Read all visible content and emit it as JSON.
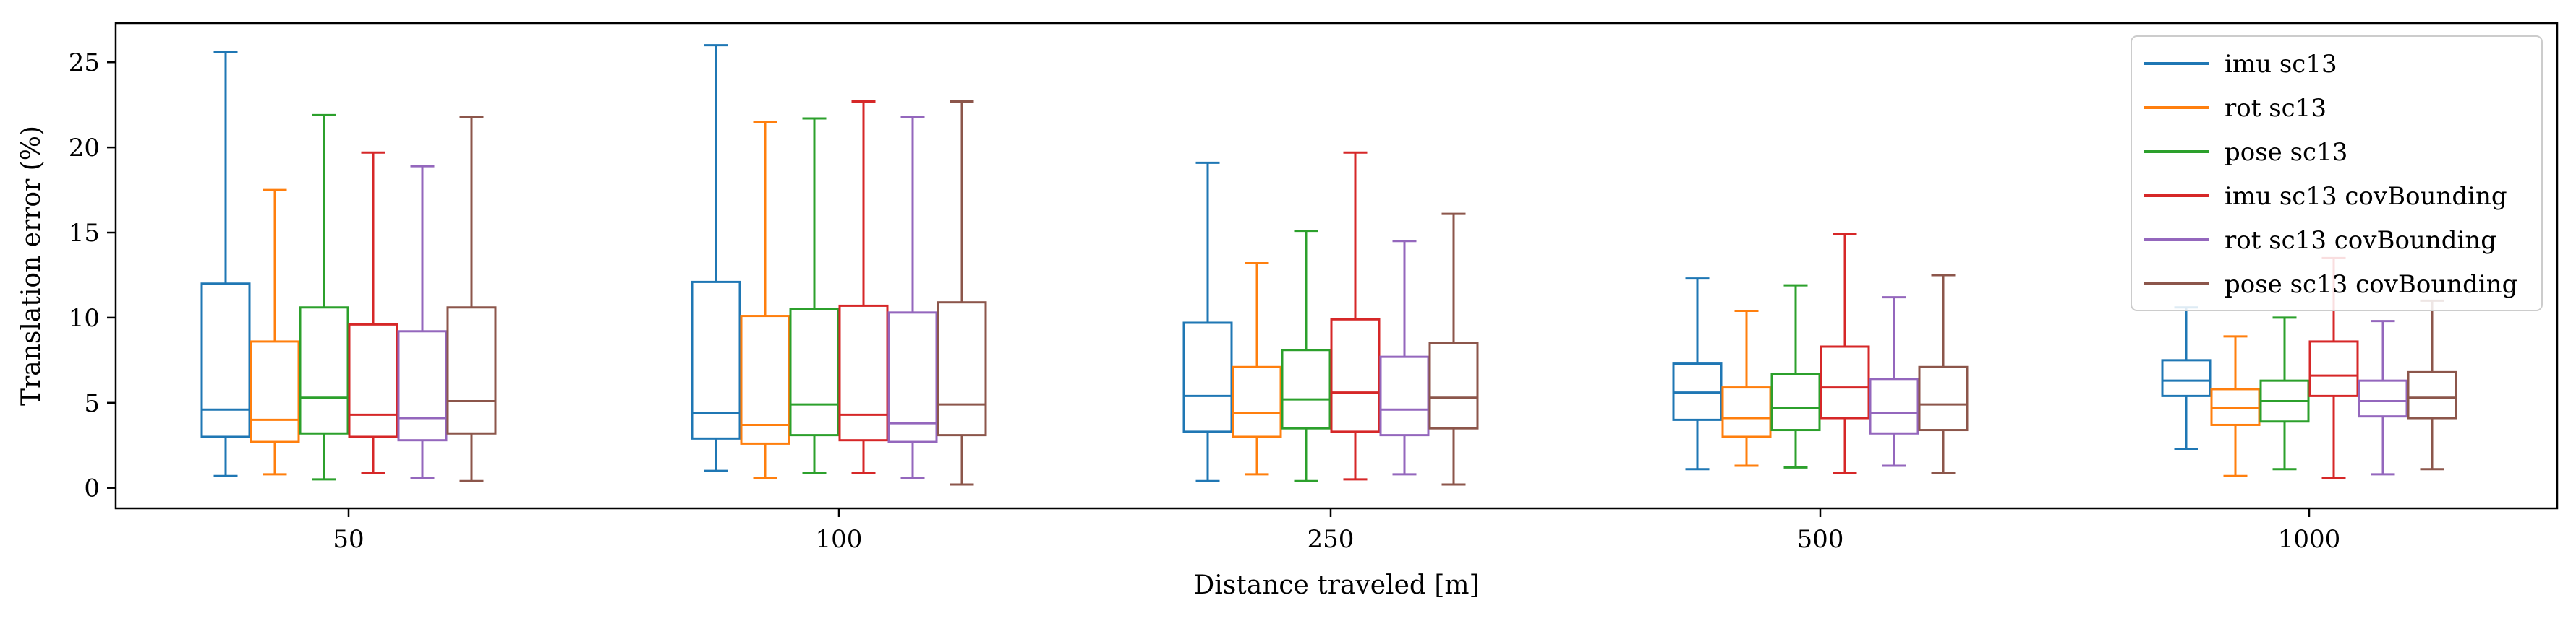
{
  "chart_data": {
    "type": "boxplot",
    "xlabel": "Distance traveled [m]",
    "ylabel": "Translation error (%)",
    "ylim": [
      -1.2,
      27.3
    ],
    "yticks": [
      0,
      5,
      10,
      15,
      20,
      25
    ],
    "grid": false,
    "legend_position": "top-right",
    "categories": [
      "50",
      "100",
      "250",
      "500",
      "1000"
    ],
    "series": [
      {
        "name": "imu sc13",
        "color": "#1f77b4",
        "boxes": [
          {
            "whislo": 0.7,
            "q1": 3.0,
            "med": 4.6,
            "q3": 12.0,
            "whishi": 25.6
          },
          {
            "whislo": 1.0,
            "q1": 2.9,
            "med": 4.4,
            "q3": 12.1,
            "whishi": 26.0
          },
          {
            "whislo": 0.4,
            "q1": 3.3,
            "med": 5.4,
            "q3": 9.7,
            "whishi": 19.1
          },
          {
            "whislo": 1.1,
            "q1": 4.0,
            "med": 5.6,
            "q3": 7.3,
            "whishi": 12.3
          },
          {
            "whislo": 2.3,
            "q1": 5.4,
            "med": 6.3,
            "q3": 7.5,
            "whishi": 10.6
          }
        ]
      },
      {
        "name": "rot sc13",
        "color": "#ff7f0e",
        "boxes": [
          {
            "whislo": 0.8,
            "q1": 2.7,
            "med": 4.0,
            "q3": 8.6,
            "whishi": 17.5
          },
          {
            "whislo": 0.6,
            "q1": 2.6,
            "med": 3.7,
            "q3": 10.1,
            "whishi": 21.5
          },
          {
            "whislo": 0.8,
            "q1": 3.0,
            "med": 4.4,
            "q3": 7.1,
            "whishi": 13.2
          },
          {
            "whislo": 1.3,
            "q1": 3.0,
            "med": 4.1,
            "q3": 5.9,
            "whishi": 10.4
          },
          {
            "whislo": 0.7,
            "q1": 3.7,
            "med": 4.7,
            "q3": 5.8,
            "whishi": 8.9
          }
        ]
      },
      {
        "name": "pose sc13",
        "color": "#2ca02c",
        "boxes": [
          {
            "whislo": 0.5,
            "q1": 3.2,
            "med": 5.3,
            "q3": 10.6,
            "whishi": 21.9
          },
          {
            "whislo": 0.9,
            "q1": 3.1,
            "med": 4.9,
            "q3": 10.5,
            "whishi": 21.7
          },
          {
            "whislo": 0.4,
            "q1": 3.5,
            "med": 5.2,
            "q3": 8.1,
            "whishi": 15.1
          },
          {
            "whislo": 1.2,
            "q1": 3.4,
            "med": 4.7,
            "q3": 6.7,
            "whishi": 11.9
          },
          {
            "whislo": 1.1,
            "q1": 3.9,
            "med": 5.1,
            "q3": 6.3,
            "whishi": 10.0
          }
        ]
      },
      {
        "name": "imu sc13 covBounding",
        "color": "#d62728",
        "boxes": [
          {
            "whislo": 0.9,
            "q1": 3.0,
            "med": 4.3,
            "q3": 9.6,
            "whishi": 19.7
          },
          {
            "whislo": 0.9,
            "q1": 2.8,
            "med": 4.3,
            "q3": 10.7,
            "whishi": 22.7
          },
          {
            "whislo": 0.5,
            "q1": 3.3,
            "med": 5.6,
            "q3": 9.9,
            "whishi": 19.7
          },
          {
            "whislo": 0.9,
            "q1": 4.1,
            "med": 5.9,
            "q3": 8.3,
            "whishi": 14.9
          },
          {
            "whislo": 0.6,
            "q1": 5.4,
            "med": 6.6,
            "q3": 8.6,
            "whishi": 13.5
          }
        ]
      },
      {
        "name": "rot sc13 covBounding",
        "color": "#9467bd",
        "boxes": [
          {
            "whislo": 0.6,
            "q1": 2.8,
            "med": 4.1,
            "q3": 9.2,
            "whishi": 18.9
          },
          {
            "whislo": 0.6,
            "q1": 2.7,
            "med": 3.8,
            "q3": 10.3,
            "whishi": 21.8
          },
          {
            "whislo": 0.8,
            "q1": 3.1,
            "med": 4.6,
            "q3": 7.7,
            "whishi": 14.5
          },
          {
            "whislo": 1.3,
            "q1": 3.2,
            "med": 4.4,
            "q3": 6.4,
            "whishi": 11.2
          },
          {
            "whislo": 0.8,
            "q1": 4.2,
            "med": 5.1,
            "q3": 6.3,
            "whishi": 9.8
          }
        ]
      },
      {
        "name": "pose sc13 covBounding",
        "color": "#8c564b",
        "boxes": [
          {
            "whislo": 0.4,
            "q1": 3.2,
            "med": 5.1,
            "q3": 10.6,
            "whishi": 21.8
          },
          {
            "whislo": 0.2,
            "q1": 3.1,
            "med": 4.9,
            "q3": 10.9,
            "whishi": 22.7
          },
          {
            "whislo": 0.2,
            "q1": 3.5,
            "med": 5.3,
            "q3": 8.5,
            "whishi": 16.1
          },
          {
            "whislo": 0.9,
            "q1": 3.4,
            "med": 4.9,
            "q3": 7.1,
            "whishi": 12.5
          },
          {
            "whislo": 1.1,
            "q1": 4.1,
            "med": 5.3,
            "q3": 6.8,
            "whishi": 11.0
          }
        ]
      }
    ]
  }
}
